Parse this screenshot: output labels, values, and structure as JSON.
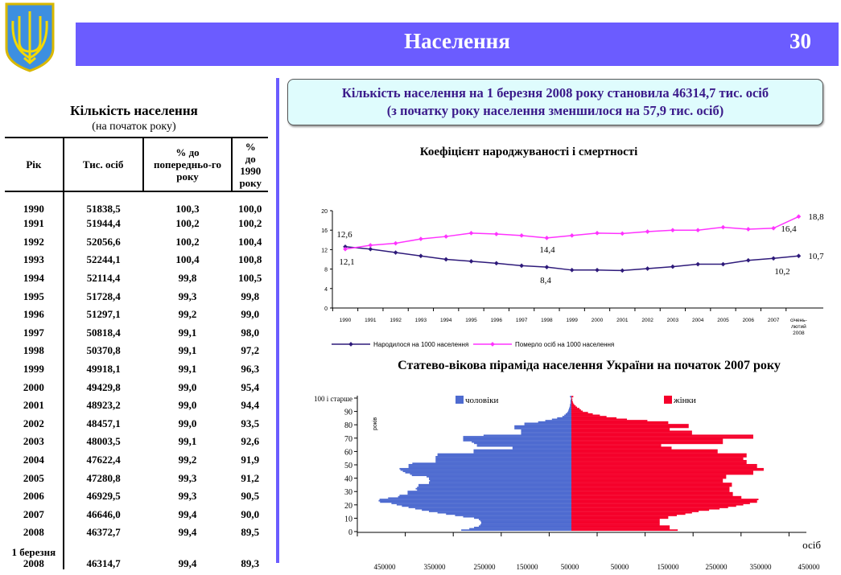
{
  "header": {
    "title": "Населення",
    "page_number": "30",
    "emblem": "coat-of-arms-of-ukraine"
  },
  "info_box": {
    "line1": "Кількість населення на 1 березня 2008 року становила 46314,7 тис. осіб",
    "line2": "(з початку року населення зменшилося на 57,9 тис. осіб)"
  },
  "table": {
    "title": "Кількість населення",
    "subtitle": "(на початок року)",
    "columns": [
      "Рік",
      "Тис. осіб",
      "% до попередньо-го року",
      "% до 1990 року"
    ],
    "rows": [
      [
        "1990",
        "51838,5",
        "100,3",
        "100,0"
      ],
      [
        "1991",
        "51944,4",
        "100,2",
        "100,2"
      ],
      [
        "1992",
        "52056,6",
        "100,2",
        "100,4"
      ],
      [
        "1993",
        "52244,1",
        "100,4",
        "100,8"
      ],
      [
        "1994",
        "52114,4",
        "99,8",
        "100,5"
      ],
      [
        "1995",
        "51728,4",
        "99,3",
        "99,8"
      ],
      [
        "1996",
        "51297,1",
        "99,2",
        "99,0"
      ],
      [
        "1997",
        "50818,4",
        "99,1",
        "98,0"
      ],
      [
        "1998",
        "50370,8",
        "99,1",
        "97,2"
      ],
      [
        "1999",
        "49918,1",
        "99,1",
        "96,3"
      ],
      [
        "2000",
        "49429,8",
        "99,0",
        "95,4"
      ],
      [
        "2001",
        "48923,2",
        "99,0",
        "94,4"
      ],
      [
        "2002",
        "48457,1",
        "99,0",
        "93,5"
      ],
      [
        "2003",
        "48003,5",
        "99,1",
        "92,6"
      ],
      [
        "2004",
        "47622,4",
        "99,2",
        "91,9"
      ],
      [
        "2005",
        "47280,8",
        "99,3",
        "91,2"
      ],
      [
        "2006",
        "46929,5",
        "99,3",
        "90,5"
      ],
      [
        "2007",
        "46646,0",
        "99,4",
        "90,0"
      ],
      [
        "2008",
        "46372,7",
        "99,4",
        "89,5"
      ],
      [
        "1 березня 2008",
        "46314,7",
        "99,4",
        "89,3"
      ]
    ]
  },
  "chart_data": [
    {
      "type": "line",
      "title": "Коефіцієнт народжуваності і смертності",
      "categories": [
        "1990",
        "1991",
        "1992",
        "1993",
        "1994",
        "1995",
        "1996",
        "1997",
        "1998",
        "1999",
        "2000",
        "2001",
        "2002",
        "2003",
        "2004",
        "2005",
        "2006",
        "2007",
        "січень-лютий 2008"
      ],
      "yticks": [
        "0",
        "4",
        "8",
        "12",
        "16",
        "20"
      ],
      "ylim": [
        0,
        20
      ],
      "series": [
        {
          "name": "Народилося на 1000 населення",
          "color": "#2e1a7a",
          "values": [
            12.6,
            12.1,
            11.4,
            10.7,
            10.0,
            9.6,
            9.2,
            8.7,
            8.4,
            7.8,
            7.8,
            7.7,
            8.1,
            8.5,
            9.0,
            9.0,
            9.8,
            10.2,
            10.7
          ]
        },
        {
          "name": "Померло осіб на 1000 населення",
          "color": "#ff33ff",
          "values": [
            12.1,
            12.9,
            13.3,
            14.2,
            14.7,
            15.4,
            15.2,
            14.9,
            14.4,
            14.9,
            15.4,
            15.3,
            15.7,
            16.0,
            16.0,
            16.6,
            16.2,
            16.4,
            18.8
          ]
        }
      ],
      "annotations": [
        "12,6",
        "12,1",
        "14,4",
        "8,4",
        "16,4",
        "10,2",
        "18,8",
        "10,7"
      ],
      "legend": "bottom"
    },
    {
      "type": "bar",
      "title": "Статево-вікова піраміда населення України на початок 2007 року",
      "ylabel": "років",
      "xlabel": "осіб",
      "yticks": [
        "0",
        "10",
        "20",
        "30",
        "40",
        "50",
        "60",
        "70",
        "80",
        "90",
        "100 і старше"
      ],
      "xticks": [
        "450000",
        "350000",
        "250000",
        "150000",
        "50000",
        "50000",
        "150000",
        "250000",
        "350000",
        "450000"
      ],
      "unit_values": "thousands",
      "series": [
        {
          "name": "чоловіки",
          "color": "#4e6bd0",
          "values": [
            232,
            215,
            205,
            195,
            192,
            190,
            190,
            192,
            195,
            205,
            228,
            245,
            264,
            282,
            300,
            315,
            329,
            343,
            357,
            368,
            379,
            403,
            406,
            404,
            386,
            365,
            362,
            345,
            345,
            345,
            325,
            328,
            325,
            322,
            322,
            300,
            300,
            298,
            300,
            300,
            305,
            336,
            340,
            350,
            355,
            360,
            362,
            343,
            343,
            343,
            335,
            286,
            286,
            286,
            286,
            286,
            282,
            282,
            206,
            206,
            206,
            124,
            124,
            199,
            199,
            205,
            210,
            228,
            228,
            228,
            228,
            185,
            106,
            106,
            106,
            106,
            120,
            120,
            120,
            99,
            99,
            70,
            55,
            41,
            30,
            19,
            15,
            12,
            9,
            7,
            6,
            5,
            4,
            3,
            3,
            2,
            2,
            2,
            1,
            1,
            3
          ]
        },
        {
          "name": "жінки",
          "color": "#f5002a",
          "values": [
            224,
            207,
            207,
            207,
            186,
            186,
            186,
            186,
            186,
            204,
            204,
            222,
            240,
            254,
            268,
            290,
            312,
            330,
            347,
            362,
            376,
            391,
            391,
            394,
            358,
            358,
            340,
            340,
            340,
            333,
            333,
            333,
            333,
            338,
            338,
            338,
            319,
            319,
            319,
            326,
            326,
            326,
            383,
            383,
            383,
            405,
            405,
            391,
            391,
            391,
            369,
            369,
            369,
            362,
            362,
            369,
            369,
            369,
            308,
            308,
            308,
            211,
            211,
            189,
            189,
            319,
            319,
            319,
            319,
            383,
            383,
            383,
            254,
            254,
            254,
            207,
            207,
            247,
            247,
            247,
            204,
            204,
            160,
            117,
            95,
            74,
            60,
            45,
            35,
            24,
            20,
            17,
            12,
            9,
            6,
            4,
            3,
            2,
            2,
            1,
            4
          ]
        }
      ],
      "legend": "top"
    }
  ]
}
